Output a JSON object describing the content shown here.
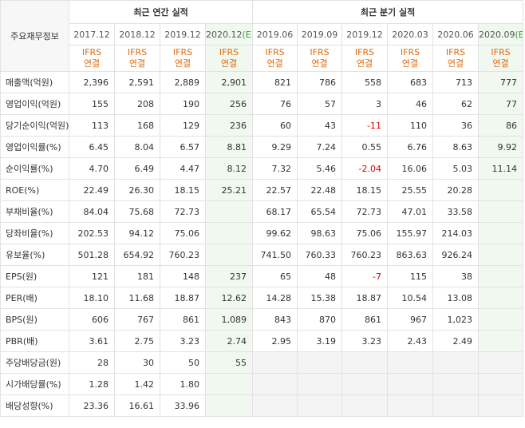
{
  "header": {
    "corner_label": "주요재무정보",
    "annual_group": "최근 연간 실적",
    "quarter_group": "최근 분기 실적",
    "standard": [
      "IFRS",
      "연결"
    ],
    "periods": [
      {
        "label": "2017.12",
        "est": false
      },
      {
        "label": "2018.12",
        "est": false
      },
      {
        "label": "2019.12",
        "est": false
      },
      {
        "label": "2020.12",
        "est": true
      },
      {
        "label": "2019.06",
        "est": false
      },
      {
        "label": "2019.09",
        "est": false
      },
      {
        "label": "2019.12",
        "est": false
      },
      {
        "label": "2020.03",
        "est": false
      },
      {
        "label": "2020.06",
        "est": false
      },
      {
        "label": "2020.09",
        "est": true
      }
    ],
    "est_marker": "(E)"
  },
  "rows": [
    {
      "label": "매출액(억원)",
      "values": [
        "2,396",
        "2,591",
        "2,889",
        "2,901",
        "821",
        "786",
        "558",
        "683",
        "713",
        "777"
      ]
    },
    {
      "label": "영업이익(억원)",
      "values": [
        "155",
        "208",
        "190",
        "256",
        "76",
        "57",
        "3",
        "46",
        "62",
        "77"
      ]
    },
    {
      "label": "당기순이익(억원)",
      "values": [
        "113",
        "168",
        "129",
        "236",
        "60",
        "43",
        "-11",
        "110",
        "36",
        "86"
      ]
    },
    {
      "label": "영업이익률(%)",
      "sep": true,
      "values": [
        "6.45",
        "8.04",
        "6.57",
        "8.81",
        "9.29",
        "7.24",
        "0.55",
        "6.76",
        "8.63",
        "9.92"
      ]
    },
    {
      "label": "순이익률(%)",
      "values": [
        "4.70",
        "6.49",
        "4.47",
        "8.12",
        "7.32",
        "5.46",
        "-2.04",
        "16.06",
        "5.03",
        "11.14"
      ]
    },
    {
      "label": "ROE(%)",
      "values": [
        "22.49",
        "26.30",
        "18.15",
        "25.21",
        "22.57",
        "22.48",
        "18.15",
        "25.55",
        "20.28",
        ""
      ]
    },
    {
      "label": "부채비율(%)",
      "sep": true,
      "values": [
        "84.04",
        "75.68",
        "72.73",
        "",
        "68.17",
        "65.54",
        "72.73",
        "47.01",
        "33.58",
        ""
      ]
    },
    {
      "label": "당좌비율(%)",
      "values": [
        "202.53",
        "94.12",
        "75.06",
        "",
        "99.62",
        "98.63",
        "75.06",
        "155.97",
        "214.03",
        ""
      ]
    },
    {
      "label": "유보율(%)",
      "values": [
        "501.28",
        "654.92",
        "760.23",
        "",
        "741.50",
        "760.33",
        "760.23",
        "863.63",
        "926.24",
        ""
      ]
    },
    {
      "label": "EPS(원)",
      "sep": true,
      "values": [
        "121",
        "181",
        "148",
        "237",
        "65",
        "48",
        "-7",
        "115",
        "38",
        ""
      ]
    },
    {
      "label": "PER(배)",
      "values": [
        "18.10",
        "11.68",
        "18.87",
        "12.62",
        "14.28",
        "15.38",
        "18.87",
        "10.54",
        "13.08",
        ""
      ]
    },
    {
      "label": "BPS(원)",
      "values": [
        "606",
        "767",
        "861",
        "1,089",
        "843",
        "870",
        "861",
        "967",
        "1,023",
        ""
      ]
    },
    {
      "label": "PBR(배)",
      "values": [
        "3.61",
        "2.75",
        "3.23",
        "2.74",
        "2.95",
        "3.19",
        "3.23",
        "2.43",
        "2.49",
        ""
      ]
    },
    {
      "label": "주당배당금(원)",
      "sep": true,
      "nq": true,
      "values": [
        "28",
        "30",
        "50",
        "55",
        "",
        "",
        "",
        "",
        "",
        ""
      ]
    },
    {
      "label": "시가배당률(%)",
      "nq": true,
      "values": [
        "1.28",
        "1.42",
        "1.80",
        "",
        "",
        "",
        "",
        "",
        "",
        ""
      ]
    },
    {
      "label": "배당성향(%)",
      "nq": true,
      "values": [
        "23.36",
        "16.61",
        "33.96",
        "",
        "",
        "",
        "",
        "",
        "",
        ""
      ]
    }
  ]
}
